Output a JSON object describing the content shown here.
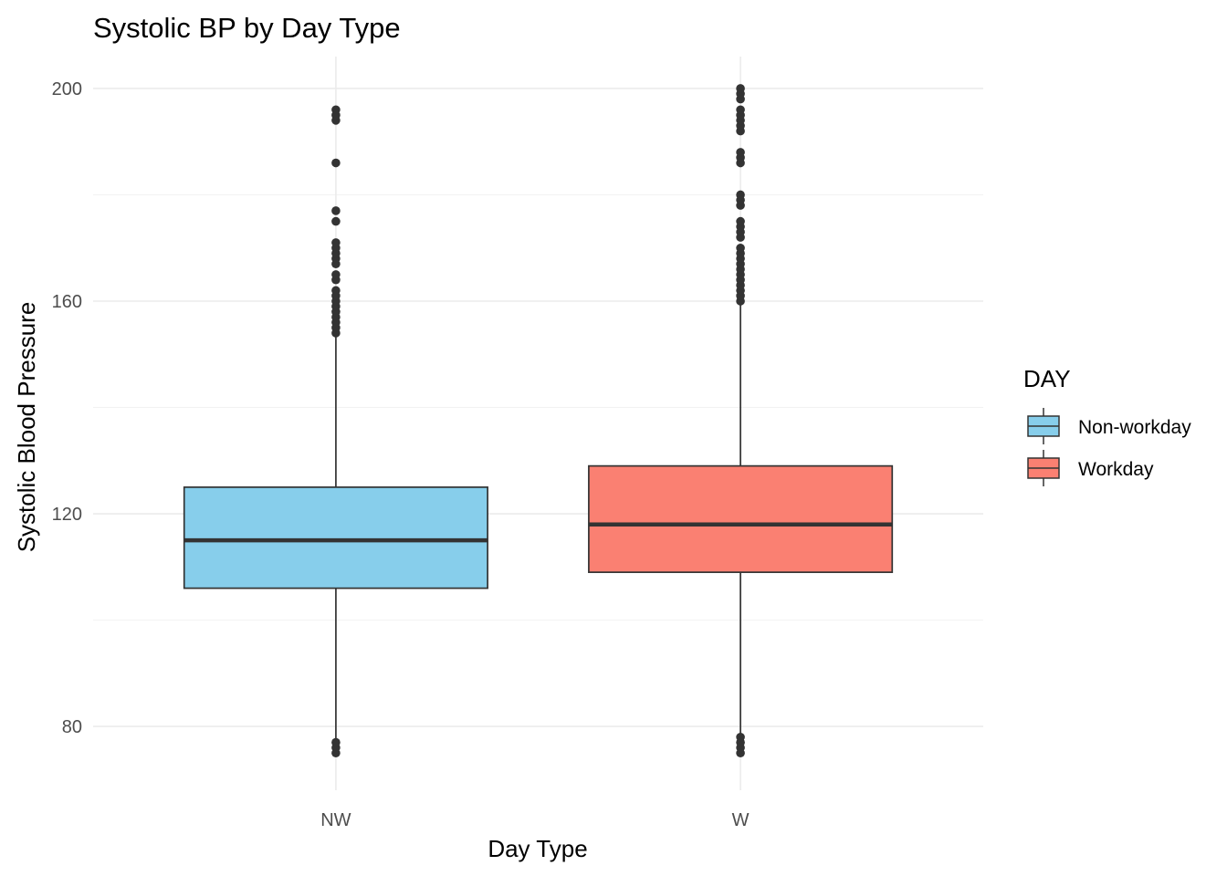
{
  "chart_data": {
    "type": "boxplot",
    "title": "Systolic BP by Day Type",
    "xlabel": "Day Type",
    "ylabel": "Systolic Blood Pressure",
    "ylim": [
      68,
      206
    ],
    "yticks": [
      80,
      120,
      160,
      200
    ],
    "grid": true,
    "legend": {
      "title": "DAY",
      "placement": "right",
      "entries": [
        {
          "label": "Non-workday",
          "color": "#87CEEB"
        },
        {
          "label": "Workday",
          "color": "#FA8072"
        }
      ]
    },
    "categories": [
      "NW",
      "W"
    ],
    "boxes": [
      {
        "category": "NW",
        "group": "Non-workday",
        "color": "#87CEEB",
        "lower_whisker": 77,
        "q1": 106,
        "median": 115,
        "q3": 125,
        "upper_whisker": 154,
        "outliers": [
          75,
          76,
          77,
          154,
          155,
          156,
          157,
          158,
          159,
          160,
          161,
          162,
          164,
          165,
          167,
          168,
          169,
          170,
          171,
          175,
          177,
          186,
          194,
          195,
          196
        ]
      },
      {
        "category": "W",
        "group": "Workday",
        "color": "#FA8072",
        "lower_whisker": 78,
        "q1": 109,
        "median": 118,
        "q3": 129,
        "upper_whisker": 160,
        "outliers": [
          75,
          76,
          77,
          78,
          160,
          161,
          162,
          163,
          164,
          165,
          166,
          167,
          168,
          169,
          170,
          172,
          173,
          174,
          175,
          178,
          179,
          180,
          186,
          187,
          188,
          192,
          193,
          194,
          195,
          196,
          198,
          199,
          200
        ]
      }
    ]
  }
}
